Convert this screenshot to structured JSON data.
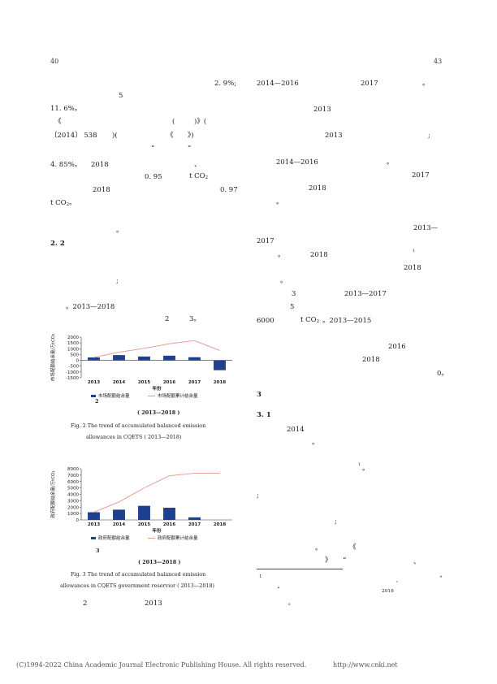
{
  "header": {
    "left_page_number": "40",
    "right_page_number": "43"
  },
  "left_column": {
    "lines": [
      "2. 9%;",
      "5",
      "11. 6%。",
      "《",
      "(",
      ")》(",
      "〔2014〕 538",
      ")(",
      "《",
      "》)",
      "“",
      "”",
      "4. 85%。",
      "2018",
      "、",
      "0. 95",
      "2018",
      "0. 97",
      "。",
      "。2013—2018",
      "2",
      "3。",
      "2",
      "2013"
    ],
    "tco2_a": {
      "prefix": "t CO",
      "sub": "2"
    },
    "tco2_b": {
      "prefix": "t CO",
      "sub": "2",
      "suffix": "。"
    },
    "semicolon": ";",
    "section_heading": "2. 2"
  },
  "figure2": {
    "number": "2",
    "title_range": "( 2013—2018 )",
    "caption_line1": "Fig. 2   The trend of accumulated balanced emission",
    "caption_line2": "allowances in CQETS ( 2013—2018)"
  },
  "figure3": {
    "number": "3",
    "title_range": "( 2013—2018 )",
    "caption_line1": "Fig. 3   The trend of accumulated balanced emission",
    "caption_line2": "allowances in CQETS government reservior ( 2013—2018)"
  },
  "right_column": {
    "lines": [
      "2014—2016",
      "2017",
      "。",
      "2013",
      "2013",
      ";",
      "2014—2016",
      "。",
      "2017",
      "2018",
      "。",
      "2013—",
      "2017",
      "。",
      "2018",
      "1",
      "2018",
      "。",
      "3",
      "2013—2017",
      "5",
      "6000",
      "。2013—2015",
      "2016",
      "2018",
      "0。",
      "3",
      "3. 1",
      "2014",
      "。",
      "1",
      "。",
      ";",
      ";",
      "。",
      "《",
      "》",
      "“",
      "、"
    ],
    "tco2": {
      "prefix": "t CO",
      "sub": "2"
    }
  },
  "footnote": {
    "marker": "1",
    "comma": ",",
    "quote": "“",
    "end_quote": "”",
    "year": "2018",
    "period": "。"
  },
  "footer": {
    "copyright": "(C)1994-2022 China Academic Journal Electronic Publishing House. All rights reserved.",
    "url": "http://www.cnki.net"
  },
  "chart_data": [
    {
      "type": "bar",
      "id": "figure-2",
      "categories": [
        "2013",
        "2014",
        "2015",
        "2016",
        "2017",
        "2018"
      ],
      "series": [
        {
          "name": "市场配额结余量",
          "kind": "bar",
          "color": "#1f3f8f",
          "values": [
            250,
            450,
            330,
            400,
            270,
            -850
          ]
        },
        {
          "name": "市场配额累计结余量",
          "kind": "line",
          "color": "#e8958a",
          "values": [
            250,
            700,
            1030,
            1430,
            1700,
            850
          ]
        }
      ],
      "ylabel": "市场配额结余量/万tCO₂",
      "xlabel": "年份",
      "ylim": [
        -1500,
        2000
      ],
      "yticks": [
        "2000",
        "1500",
        "1000",
        "500",
        "0",
        "-500",
        "-1000",
        "-1500"
      ],
      "legend": "bottom",
      "grid": false
    },
    {
      "type": "bar",
      "id": "figure-3",
      "categories": [
        "2013",
        "2014",
        "2015",
        "2016",
        "2017",
        "2018"
      ],
      "series": [
        {
          "name": "政府配额结余量",
          "kind": "bar",
          "color": "#1f3f8f",
          "values": [
            1200,
            1600,
            2200,
            1900,
            400,
            0
          ]
        },
        {
          "name": "政府配额累计结余量",
          "kind": "line",
          "color": "#e8958a",
          "values": [
            1200,
            2800,
            5000,
            6900,
            7300,
            7300
          ]
        }
      ],
      "ylabel": "政府配额结余量/万tCO₂",
      "xlabel": "年份",
      "ylim": [
        0,
        8000
      ],
      "yticks": [
        "8000",
        "7000",
        "6000",
        "5000",
        "4000",
        "3000",
        "2000",
        "1000",
        "0"
      ],
      "legend": "bottom",
      "grid": false
    }
  ]
}
